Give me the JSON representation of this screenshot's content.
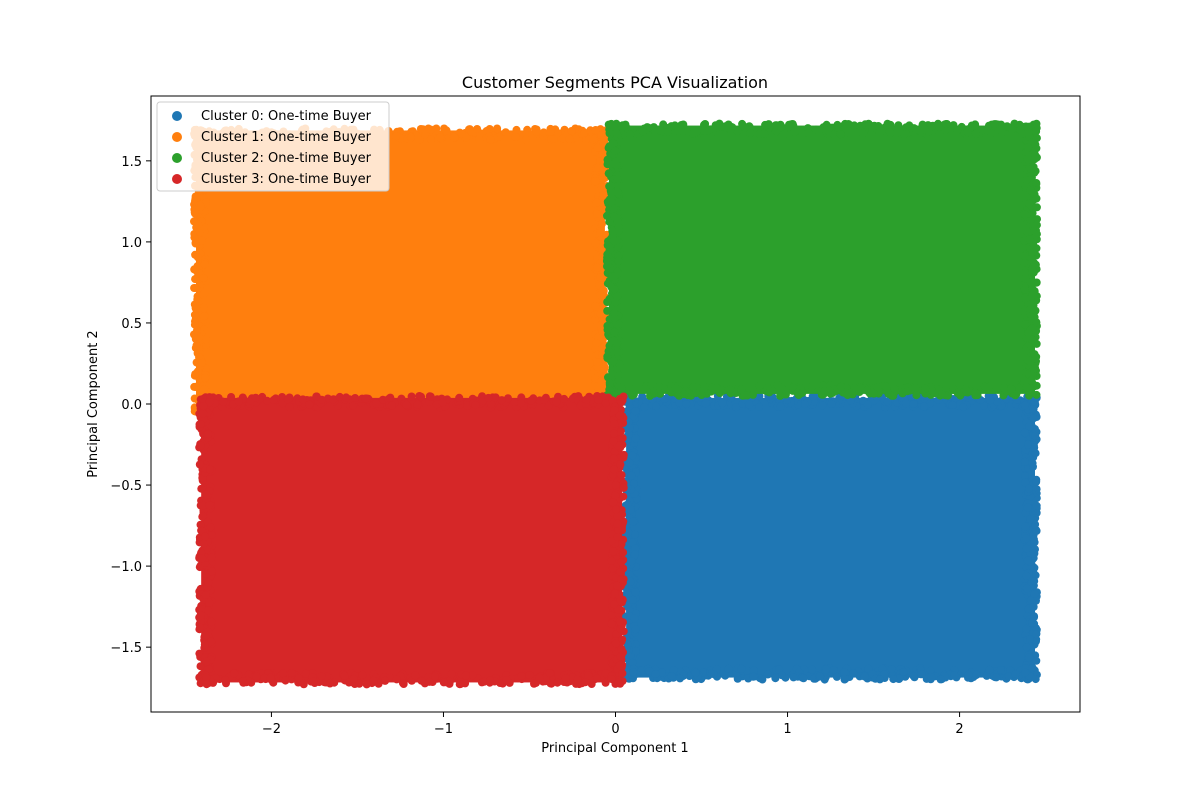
{
  "chart_data": {
    "type": "scatter",
    "title": "Customer Segments PCA Visualization",
    "xlabel": "Principal Component 1",
    "ylabel": "Principal Component 2",
    "xlim": [
      -2.7,
      2.7
    ],
    "ylim": [
      -1.9,
      1.9
    ],
    "xticks": [
      -2,
      -1,
      0,
      1,
      2
    ],
    "xtick_labels": [
      "−2",
      "−1",
      "0",
      "1",
      "2"
    ],
    "yticks": [
      -1.5,
      -1.0,
      -0.5,
      0.0,
      0.5,
      1.0,
      1.5
    ],
    "ytick_labels": [
      "−1.5",
      "−1.0",
      "−0.5",
      "0.0",
      "0.5",
      "1.0",
      "1.5"
    ],
    "grid": false,
    "legend_position": "top-left",
    "series": [
      {
        "name": "Cluster 0: One-time Buyer",
        "color": "#1f77b4",
        "x_range": [
          0.05,
          2.45
        ],
        "y_range": [
          -1.7,
          0.05
        ]
      },
      {
        "name": "Cluster 1: One-time Buyer",
        "color": "#ff7f0e",
        "x_range": [
          -2.45,
          -0.05
        ],
        "y_range": [
          -0.05,
          1.7
        ]
      },
      {
        "name": "Cluster 2: One-time Buyer",
        "color": "#2ca02c",
        "x_range": [
          -0.05,
          2.45
        ],
        "y_range": [
          0.05,
          1.73
        ]
      },
      {
        "name": "Cluster 3: One-time Buyer",
        "color": "#d62728",
        "x_range": [
          -2.42,
          0.05
        ],
        "y_range": [
          -1.73,
          0.05
        ]
      }
    ]
  }
}
